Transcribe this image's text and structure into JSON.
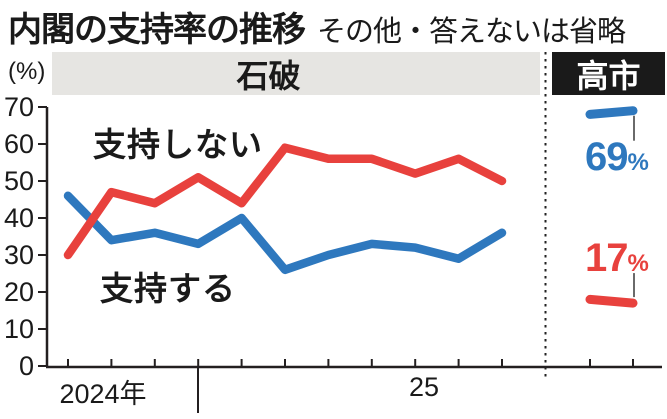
{
  "header": {
    "title": "内閣の支持率の推移",
    "subtitle": "その他・答えないは省略"
  },
  "y_axis": {
    "unit_label": "(%)",
    "ticks": [
      70,
      60,
      50,
      40,
      30,
      20,
      10,
      0
    ]
  },
  "bands": {
    "ishiba": "石破",
    "takaichi": "高市"
  },
  "series_labels": {
    "disapprove": "支持しない",
    "approve": "支持する"
  },
  "callouts": {
    "approve": {
      "value": "69",
      "suffix": "%"
    },
    "disapprove": {
      "value": "17",
      "suffix": "%"
    }
  },
  "x_axis": {
    "year_2024": "2024年",
    "year_25": "25"
  },
  "colors": {
    "approve": "#2e78be",
    "disapprove": "#e8413d",
    "band_gray": "#e6e5e2",
    "takaichi_box": "#1a1a1a",
    "axis": "#231f20",
    "connector": "#444444"
  },
  "chart_data": {
    "type": "line",
    "title": "内閣の支持率の推移",
    "note": "その他・答えないは省略",
    "ylabel": "(%)",
    "ylim": [
      0,
      70
    ],
    "y_ticks": [
      0,
      10,
      20,
      30,
      40,
      50,
      60,
      70
    ],
    "grid": false,
    "x_year_labels": [
      "2024年",
      "25"
    ],
    "sections": [
      {
        "label": "石破",
        "points": 11,
        "series": [
          {
            "name": "支持する",
            "values": [
              46,
              34,
              36,
              33,
              40,
              26,
              30,
              33,
              32,
              29,
              36
            ]
          },
          {
            "name": "支持しない",
            "values": [
              30,
              47,
              44,
              51,
              44,
              59,
              56,
              56,
              52,
              56,
              50
            ]
          }
        ]
      },
      {
        "label": "高市",
        "points": 2,
        "series": [
          {
            "name": "支持する",
            "values": [
              68,
              69
            ],
            "end_label": "69%"
          },
          {
            "name": "支持しない",
            "values": [
              18,
              17
            ],
            "end_label": "17%"
          }
        ]
      }
    ]
  }
}
